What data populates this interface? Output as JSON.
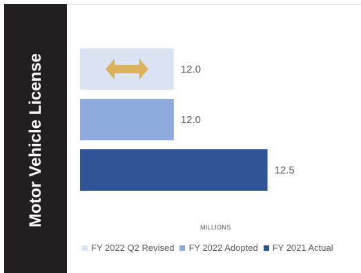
{
  "title": "Motor Vehicle License",
  "chart_data": {
    "type": "bar",
    "orientation": "horizontal",
    "axis_title": "MILLIONS",
    "categories": [
      "FY 2022 Q2 Revised",
      "FY 2022 Adopted",
      "FY 2021 Actual"
    ],
    "values": [
      12.0,
      12.0,
      12.5
    ],
    "value_labels": [
      "12.0",
      "12.0",
      "12.5"
    ],
    "colors": [
      "#dae3f4",
      "#8faadc",
      "#2f5597"
    ],
    "xlim": [
      11.5,
      12.52
    ],
    "annotation": {
      "type": "double-arrow",
      "on_category": "FY 2022 Q2 Revised",
      "color": "#dbb15c"
    },
    "grid": false,
    "legend_position": "bottom"
  }
}
